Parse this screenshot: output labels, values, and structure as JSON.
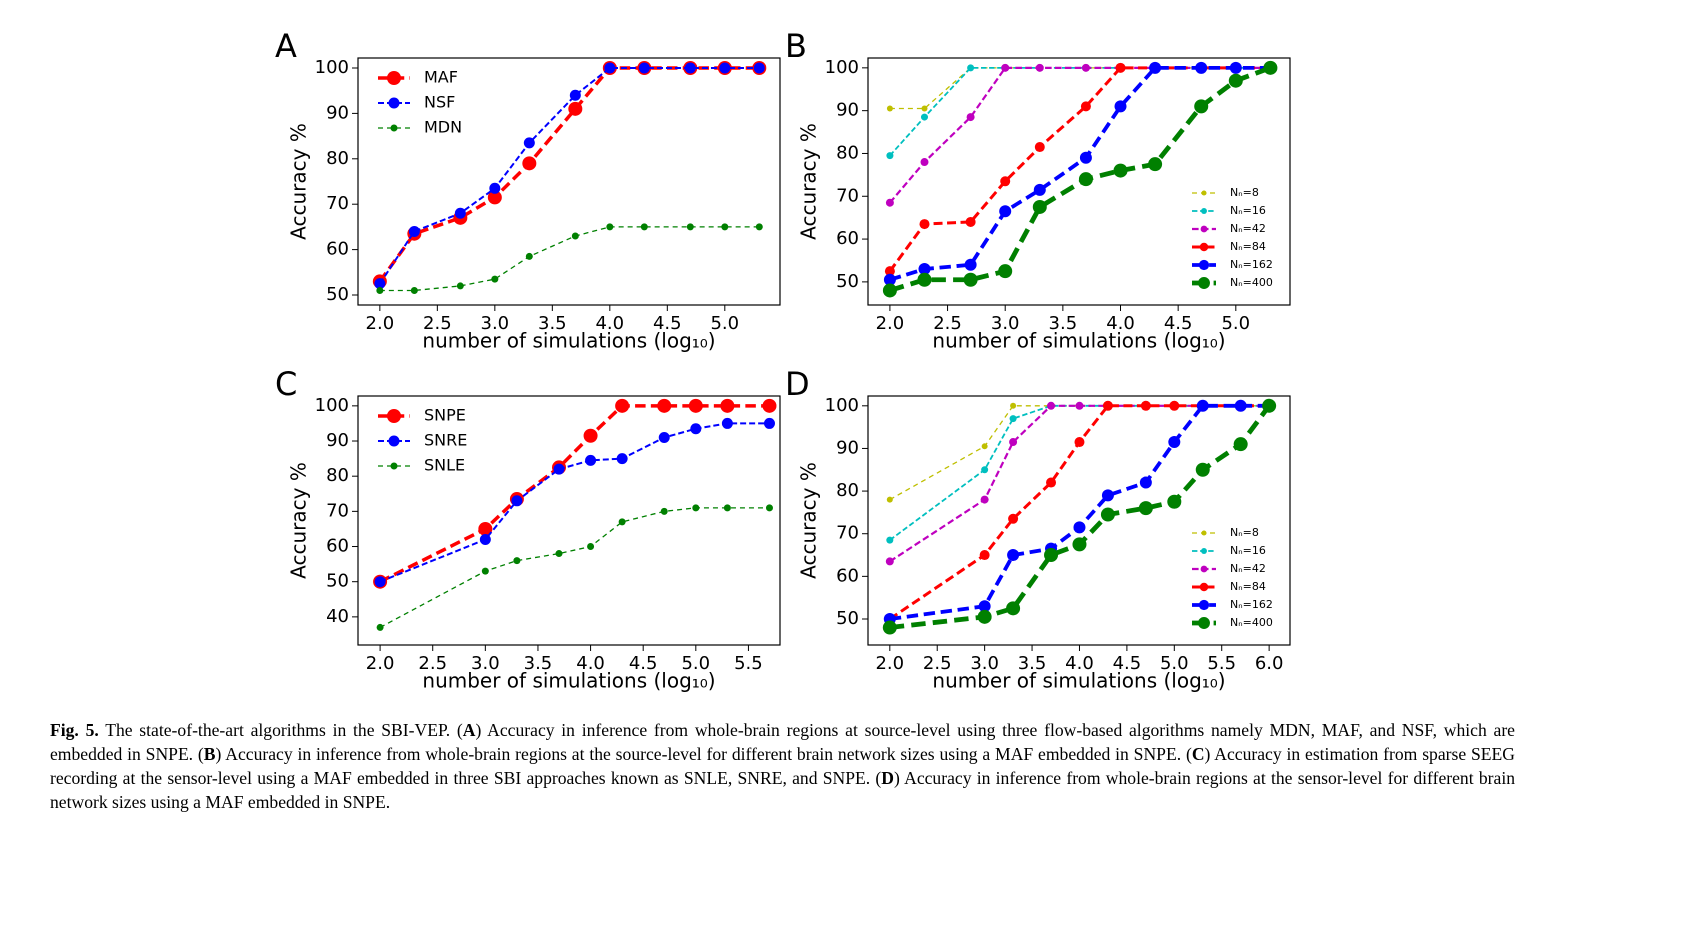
{
  "chart_data": [
    {
      "type": "line",
      "panel": "A",
      "ylabel": "Accuracy %",
      "xlabel": "number of simulations (log₁₀)",
      "legend": "upper left",
      "x": [
        2.0,
        2.3,
        2.7,
        3.0,
        3.3,
        3.7,
        4.0,
        4.3,
        4.7,
        5.0,
        5.3
      ],
      "xlim": [
        1.81,
        5.48
      ],
      "ylim": [
        47.8,
        102.2
      ],
      "xticks": [
        {
          "value": 2.0,
          "label": "2.0"
        },
        {
          "value": 2.5,
          "label": "2.5"
        },
        {
          "value": 3.0,
          "label": "3.0"
        },
        {
          "value": 3.5,
          "label": "3.5"
        },
        {
          "value": 4.0,
          "label": "4.0"
        },
        {
          "value": 4.5,
          "label": "4.5"
        },
        {
          "value": 5.0,
          "label": "5.0"
        }
      ],
      "yticks": [
        50,
        60,
        70,
        80,
        90,
        100
      ],
      "series": [
        {
          "name": "MAF",
          "color": "#ff0000",
          "line_width": 3.5,
          "marker_size": 7,
          "values": [
            53,
            63.5,
            67,
            71.5,
            79,
            91,
            100,
            100,
            100,
            100,
            100
          ]
        },
        {
          "name": "NSF",
          "color": "#0000ff",
          "line_width": 2,
          "marker_size": 5.5,
          "values": [
            52.5,
            64,
            68,
            73.5,
            83.5,
            94,
            100,
            100,
            100,
            100,
            100
          ]
        },
        {
          "name": "MDN",
          "color": "#008000",
          "line_width": 1.3,
          "marker_size": 3.5,
          "values": [
            51,
            51,
            52,
            53.5,
            58.5,
            63,
            65,
            65,
            65,
            65,
            65
          ]
        }
      ]
    },
    {
      "type": "line",
      "panel": "B",
      "ylabel": "Accuracy %",
      "xlabel": "number of simulations (log₁₀)",
      "legend": "lower right",
      "x": [
        2.0,
        2.3,
        2.7,
        3.0,
        3.3,
        3.7,
        4.0,
        4.3,
        4.7,
        5.0,
        5.3
      ],
      "xlim": [
        1.81,
        5.47
      ],
      "ylim": [
        44.6,
        102.3
      ],
      "xticks": [
        {
          "value": 2.0,
          "label": "2.0"
        },
        {
          "value": 2.5,
          "label": "2.5"
        },
        {
          "value": 3.0,
          "label": "3.0"
        },
        {
          "value": 3.5,
          "label": "3.5"
        },
        {
          "value": 4.0,
          "label": "4.0"
        },
        {
          "value": 4.5,
          "label": "4.5"
        },
        {
          "value": 5.0,
          "label": "5.0"
        }
      ],
      "yticks": [
        50,
        60,
        70,
        80,
        90,
        100
      ],
      "series": [
        {
          "name": "Nₙ=8",
          "color": "#bfbf00",
          "line_width": 1.3,
          "marker_size": 3,
          "values": [
            90.5,
            90.5,
            100,
            100,
            100,
            100,
            100,
            100,
            100,
            100,
            100
          ]
        },
        {
          "name": "Nₙ=16",
          "color": "#00bfbf",
          "line_width": 1.8,
          "marker_size": 3.5,
          "values": [
            79.5,
            88.5,
            100,
            100,
            100,
            100,
            100,
            100,
            100,
            100,
            100
          ]
        },
        {
          "name": "Nₙ=42",
          "color": "#bf00bf",
          "line_width": 2.2,
          "marker_size": 4,
          "values": [
            68.5,
            78,
            88.5,
            100,
            100,
            100,
            100,
            100,
            100,
            100,
            100
          ]
        },
        {
          "name": "Nₙ=84",
          "color": "#ff0000",
          "line_width": 3,
          "marker_size": 5,
          "values": [
            52.5,
            63.5,
            64,
            73.5,
            81.5,
            91,
            100,
            100,
            100,
            100,
            100
          ]
        },
        {
          "name": "Nₙ=162",
          "color": "#0000ff",
          "line_width": 3.8,
          "marker_size": 6,
          "values": [
            50.5,
            53,
            54,
            66.5,
            71.5,
            79,
            91,
            100,
            100,
            100,
            100
          ]
        },
        {
          "name": "Nₙ=400",
          "color": "#008000",
          "line_width": 4.8,
          "marker_size": 7,
          "values": [
            48,
            50.5,
            50.5,
            52.5,
            67.5,
            74,
            76,
            77.5,
            91,
            97,
            100
          ]
        }
      ]
    },
    {
      "type": "line",
      "panel": "C",
      "ylabel": "Accuracy %",
      "xlabel": "number of simulations (log₁₀)",
      "legend": "upper left",
      "x": [
        2.0,
        3.0,
        3.3,
        3.7,
        4.0,
        4.3,
        4.7,
        5.0,
        5.3,
        5.7
      ],
      "xlim": [
        1.79,
        5.8
      ],
      "ylim": [
        32,
        102.8
      ],
      "xticks": [
        {
          "value": 2.0,
          "label": "2.0"
        },
        {
          "value": 2.5,
          "label": "2.5"
        },
        {
          "value": 3.0,
          "label": "3.0"
        },
        {
          "value": 3.5,
          "label": "3.5"
        },
        {
          "value": 4.0,
          "label": "4.0"
        },
        {
          "value": 4.5,
          "label": "4.5"
        },
        {
          "value": 5.0,
          "label": "5.0"
        },
        {
          "value": 5.5,
          "label": "5.5"
        }
      ],
      "yticks": [
        40,
        50,
        60,
        70,
        80,
        90,
        100
      ],
      "series": [
        {
          "name": "SNPE",
          "color": "#ff0000",
          "line_width": 3.5,
          "marker_size": 7,
          "values": [
            50,
            65,
            73.5,
            82.5,
            91.5,
            100,
            100,
            100,
            100,
            100
          ]
        },
        {
          "name": "SNRE",
          "color": "#0000ff",
          "line_width": 2,
          "marker_size": 5.5,
          "values": [
            50,
            62,
            73,
            82,
            84.5,
            85,
            91,
            93.5,
            95,
            95
          ]
        },
        {
          "name": "SNLE",
          "color": "#008000",
          "line_width": 1.3,
          "marker_size": 3.5,
          "values": [
            37,
            53,
            56,
            58,
            60,
            67,
            70,
            71,
            71,
            71
          ]
        }
      ]
    },
    {
      "type": "line",
      "panel": "D",
      "ylabel": "Accuracy %",
      "xlabel": "number of simulations (log₁₀)",
      "legend": "lower right",
      "x": [
        2.0,
        3.0,
        3.3,
        3.7,
        4.0,
        4.3,
        4.7,
        5.0,
        5.3,
        5.7,
        6.0
      ],
      "xlim": [
        1.77,
        6.22
      ],
      "ylim": [
        43.9,
        102.3
      ],
      "xticks": [
        {
          "value": 2.0,
          "label": "2.0"
        },
        {
          "value": 2.5,
          "label": "2.5"
        },
        {
          "value": 3.0,
          "label": "3.0"
        },
        {
          "value": 3.5,
          "label": "3.5"
        },
        {
          "value": 4.0,
          "label": "4.0"
        },
        {
          "value": 4.5,
          "label": "4.5"
        },
        {
          "value": 5.0,
          "label": "5.0"
        },
        {
          "value": 5.5,
          "label": "5.5"
        },
        {
          "value": 6.0,
          "label": "6.0"
        }
      ],
      "yticks": [
        50,
        60,
        70,
        80,
        90,
        100
      ],
      "series": [
        {
          "name": "Nₙ=8",
          "color": "#bfbf00",
          "line_width": 1.3,
          "marker_size": 3,
          "values": [
            78,
            90.5,
            100,
            100,
            100,
            100,
            100,
            100,
            100,
            100,
            100
          ]
        },
        {
          "name": "Nₙ=16",
          "color": "#00bfbf",
          "line_width": 1.8,
          "marker_size": 3.5,
          "values": [
            68.5,
            85,
            97,
            100,
            100,
            100,
            100,
            100,
            100,
            100,
            100
          ]
        },
        {
          "name": "Nₙ=42",
          "color": "#bf00bf",
          "line_width": 2.2,
          "marker_size": 4,
          "values": [
            63.5,
            78,
            91.5,
            100,
            100,
            100,
            100,
            100,
            100,
            100,
            100
          ]
        },
        {
          "name": "Nₙ=84",
          "color": "#ff0000",
          "line_width": 3,
          "marker_size": 5,
          "values": [
            50,
            65,
            73.5,
            82,
            91.5,
            100,
            100,
            100,
            100,
            100,
            100
          ]
        },
        {
          "name": "Nₙ=162",
          "color": "#0000ff",
          "line_width": 3.8,
          "marker_size": 6,
          "values": [
            50,
            53,
            65,
            66.5,
            71.5,
            79,
            82,
            91.5,
            100,
            100,
            100
          ]
        },
        {
          "name": "Nₙ=400",
          "color": "#008000",
          "line_width": 4.8,
          "marker_size": 7,
          "values": [
            48,
            50.5,
            52.5,
            65,
            67.5,
            74.5,
            76,
            77.5,
            85,
            91,
            100
          ]
        }
      ]
    }
  ],
  "caption": {
    "label": "Fig. 5.",
    "parts": [
      {
        "text": " The state-of-the-art algorithms in the SBI-VEP. (",
        "bold": false
      },
      {
        "text": "A",
        "bold": true
      },
      {
        "text": ") Accuracy in inference from whole-brain regions at source-level using three flow-based algorithms namely MDN, MAF, and NSF, which are embedded in SNPE. (",
        "bold": false
      },
      {
        "text": "B",
        "bold": true
      },
      {
        "text": ") Accuracy in inference from whole-brain regions at the source-level for different brain network sizes using a MAF embedded in SNPE. (",
        "bold": false
      },
      {
        "text": "C",
        "bold": true
      },
      {
        "text": ") Accuracy in estimation from sparse SEEG recording at the sensor-level using a MAF embedded in three SBI approaches known as SNLE, SNRE, and SNPE. (",
        "bold": false
      },
      {
        "text": "D",
        "bold": true
      },
      {
        "text": ") Accuracy in inference from whole-brain regions at the sensor-level for different brain network sizes using a MAF embedded in SNPE.",
        "bold": false
      }
    ]
  }
}
